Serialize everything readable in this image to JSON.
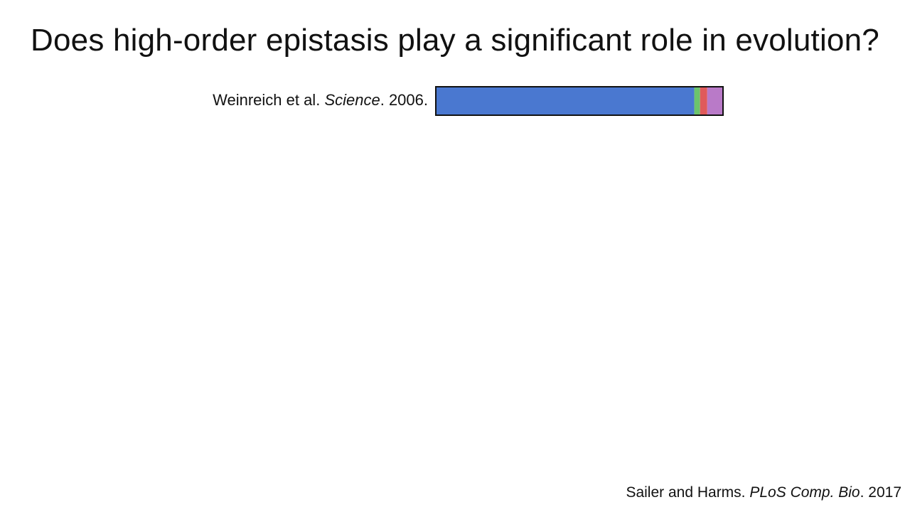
{
  "slide": {
    "title": "Does high-order epistasis play a significant role in evolution?"
  },
  "chart_data": {
    "type": "bar",
    "orientation": "horizontal",
    "stacked": true,
    "normalized": true,
    "categories": [
      "Weinreich et al. Science. 2006."
    ],
    "series": [
      {
        "values": [
          0.9
        ],
        "color": "#4a78d0"
      },
      {
        "values": [
          0.02
        ],
        "color": "#6cc46c"
      },
      {
        "values": [
          0.025
        ],
        "color": "#e05a5a"
      },
      {
        "values": [
          0.055
        ],
        "color": "#b97ac8"
      }
    ],
    "row_labels": [
      {
        "author": "Weinreich et al. ",
        "journal": "Science",
        "year": ". 2006."
      }
    ],
    "xlim": [
      0,
      1
    ],
    "grid": false,
    "legend": "none",
    "title": "",
    "xlabel": "",
    "ylabel": ""
  },
  "citation": {
    "authors": "Sailer and Harms. ",
    "journal": "PLoS Comp. Bio",
    "year": ". 2017"
  },
  "colors": {
    "bar_outline": "#111111",
    "text": "#111111",
    "background": "#ffffff"
  }
}
